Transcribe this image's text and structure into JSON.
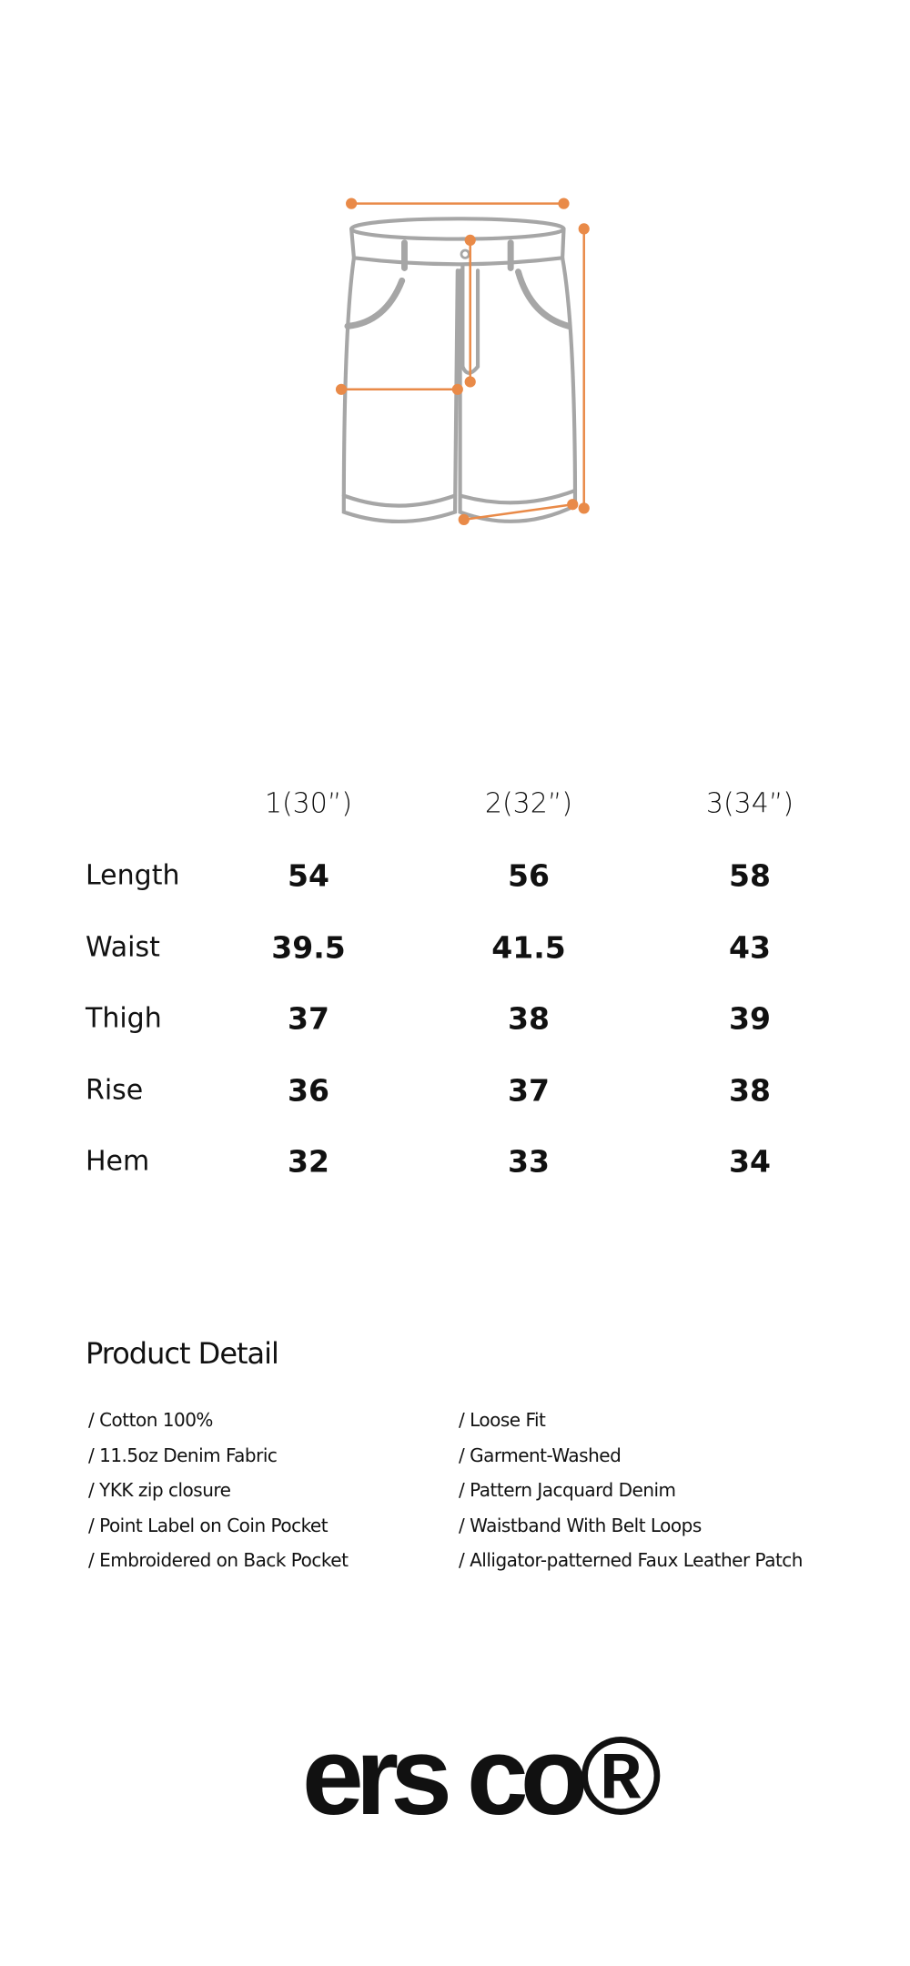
{
  "size_table": {
    "columns": [
      "1(30”)",
      "2(32”)",
      "3(34”)"
    ],
    "rows": [
      {
        "label": "Length",
        "values": [
          54,
          56,
          58
        ]
      },
      {
        "label": "Waist",
        "values": [
          39.5,
          41.5,
          43
        ]
      },
      {
        "label": "Thigh",
        "values": [
          37,
          38,
          39
        ]
      },
      {
        "label": "Rise",
        "values": [
          36,
          37,
          38
        ]
      },
      {
        "label": "Hem",
        "values": [
          32,
          33,
          34
        ]
      }
    ]
  },
  "product_detail": {
    "title": "Product Detail",
    "left": [
      "/ Cotton 100%",
      "/ 11.5oz Denim Fabric",
      "/ YKK zip closure",
      "/ Point Label on Coin Pocket",
      "/ Embroidered on Back Pocket"
    ],
    "right": [
      "/ Loose Fit",
      "/ Garment-Washed",
      "/ Pattern Jacquard Denim",
      "/ Waistband With Belt Loops",
      "/ Alligator-patterned Faux Leather Patch"
    ]
  },
  "logo": "ers co®"
}
